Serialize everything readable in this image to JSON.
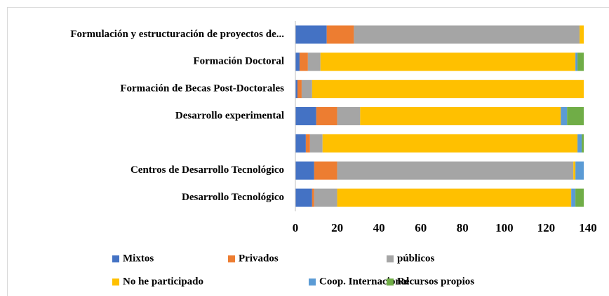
{
  "chart_data": {
    "type": "stacked_barh",
    "categories": [
      "Formulación y estructuración de proyectos de...",
      "Formación Doctoral",
      "Formación de Becas Post-Doctorales",
      "Desarrollo experimental",
      null,
      "Centros de Desarrollo Tecnológico",
      "Desarrollo Tecnológico"
    ],
    "series": [
      {
        "name": "Mixtos",
        "color": "#4472c4",
        "values": [
          15,
          2,
          1,
          10,
          5,
          9,
          8
        ]
      },
      {
        "name": "Privados",
        "color": "#ed7d31",
        "values": [
          13,
          4,
          2,
          10,
          2,
          11,
          1
        ]
      },
      {
        "name": "públicos",
        "color": "#a5a5a5",
        "values": [
          108,
          6,
          5,
          11,
          6,
          113,
          11
        ]
      },
      {
        "name": "No he participado",
        "color": "#ffc000",
        "values": [
          2,
          122,
          130,
          96,
          122,
          1,
          112
        ]
      },
      {
        "name": "Coop. Internacional",
        "color": "#5b9bd5",
        "values": [
          0,
          1,
          0,
          3,
          2,
          4,
          2
        ]
      },
      {
        "name": "Recursos propios",
        "color": "#70ad47",
        "values": [
          0,
          3,
          0,
          8,
          1,
          0,
          4
        ]
      }
    ],
    "xlim": [
      0,
      140
    ],
    "xticks": [
      0,
      20,
      40,
      60,
      80,
      100,
      120,
      140
    ]
  }
}
